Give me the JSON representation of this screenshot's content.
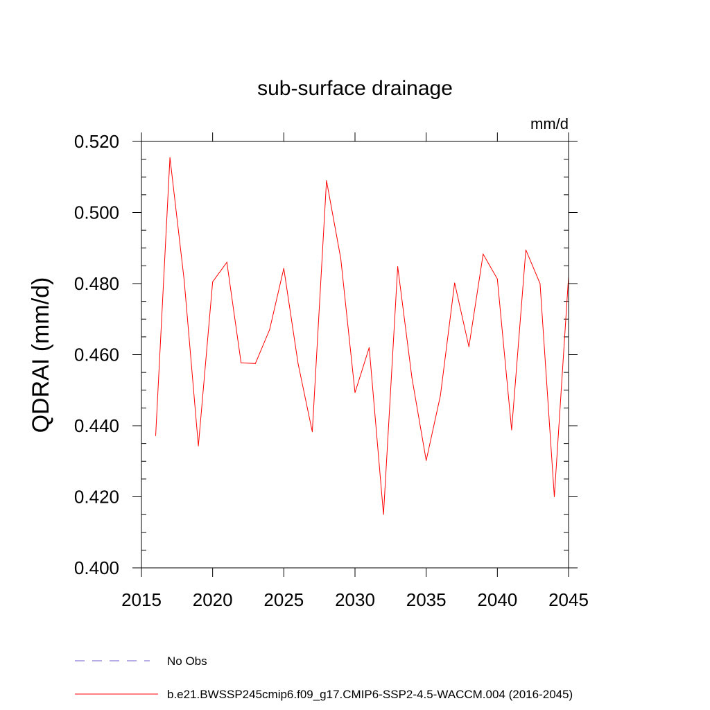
{
  "chart_data": {
    "type": "line",
    "title": "sub-surface drainage",
    "units_label": "mm/d",
    "ylabel": "QDRAI  (mm/d)",
    "xlabel": "",
    "xlim": [
      2015,
      2045
    ],
    "ylim": [
      0.4,
      0.52
    ],
    "xticks": [
      2015,
      2020,
      2025,
      2030,
      2035,
      2040,
      2045
    ],
    "xtick_labels": [
      "2015",
      "2020",
      "2025",
      "2030",
      "2035",
      "2040",
      "2045"
    ],
    "yticks": [
      0.4,
      0.42,
      0.44,
      0.46,
      0.48,
      0.5,
      0.52
    ],
    "ytick_labels": [
      "0.400",
      "0.420",
      "0.440",
      "0.460",
      "0.480",
      "0.500",
      "0.520"
    ],
    "grid": false,
    "legend_position": "bottom",
    "series": [
      {
        "name": "b.e21.BWSSP245cmip6.f09_g17.CMIP6-SSP2-4.5-WACCM.004 (2016-2045)",
        "color": "#ff0000",
        "style": "solid",
        "x": [
          2016,
          2017,
          2018,
          2019,
          2020,
          2021,
          2022,
          2023,
          2024,
          2025,
          2026,
          2027,
          2028,
          2029,
          2030,
          2031,
          2032,
          2033,
          2034,
          2035,
          2036,
          2037,
          2038,
          2039,
          2040,
          2041,
          2042,
          2043,
          2044,
          2045
        ],
        "y": [
          0.4372,
          0.5155,
          0.481,
          0.4343,
          0.4805,
          0.486,
          0.4577,
          0.4575,
          0.467,
          0.4843,
          0.4575,
          0.4383,
          0.509,
          0.487,
          0.4493,
          0.462,
          0.415,
          0.4848,
          0.4535,
          0.4302,
          0.4485,
          0.4802,
          0.4622,
          0.4883,
          0.4813,
          0.4388,
          0.4895,
          0.48,
          0.42,
          0.482
        ]
      }
    ],
    "legend": [
      {
        "name": "No Obs",
        "color": "#6a5acd",
        "style": "dashed"
      },
      {
        "name": "b.e21.BWSSP245cmip6.f09_g17.CMIP6-SSP2-4.5-WACCM.004 (2016-2045)",
        "color": "#ff0000",
        "style": "solid"
      }
    ]
  }
}
